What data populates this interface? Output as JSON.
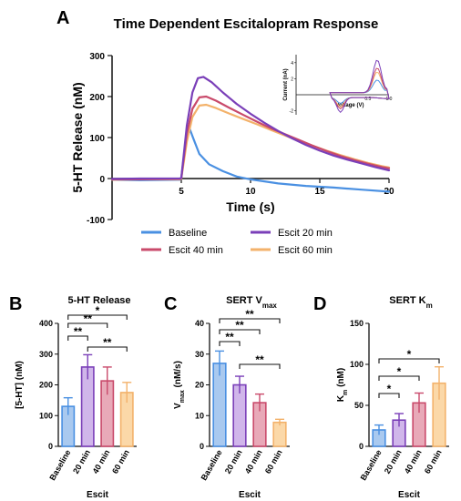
{
  "figure": {
    "panel_a": "A",
    "panel_b": "B",
    "panel_c": "C",
    "panel_d": "D"
  },
  "colors": {
    "baseline": "#4a90e2",
    "escit20": "#7a3fb8",
    "escit40": "#c94a6b",
    "escit60": "#f3b26b",
    "baseline_fill": "#a9c9ef",
    "escit20_fill": "#d0b6ea",
    "escit40_fill": "#e8a9b8",
    "escit60_fill": "#fbd8a8"
  },
  "chart_data": [
    {
      "id": "A",
      "type": "line",
      "title": "Time Dependent Escitalopram Response",
      "xlabel": "Time (s)",
      "ylabel": "5-HT Release (nM)",
      "xlim": [
        0,
        20
      ],
      "ylim": [
        -100,
        300
      ],
      "xticks": [
        "5",
        "10",
        "15",
        "20"
      ],
      "yticks": [
        "-100",
        "0",
        "100",
        "200",
        "300"
      ],
      "series": [
        {
          "name": "Baseline",
          "color": "#4a90e2",
          "points": [
            [
              0,
              -3
            ],
            [
              2,
              -4
            ],
            [
              4.9,
              -3
            ],
            [
              5.0,
              0
            ],
            [
              5.3,
              90
            ],
            [
              5.6,
              122
            ],
            [
              5.9,
              95
            ],
            [
              6.3,
              60
            ],
            [
              7,
              35
            ],
            [
              8,
              18
            ],
            [
              9,
              5
            ],
            [
              10,
              -2
            ],
            [
              12,
              -12
            ],
            [
              14,
              -18
            ],
            [
              16,
              -22
            ],
            [
              18,
              -27
            ],
            [
              20,
              -32
            ]
          ]
        },
        {
          "name": "Escit 20 min",
          "color": "#7a3fb8",
          "points": [
            [
              0,
              -1
            ],
            [
              2,
              0
            ],
            [
              4.9,
              0
            ],
            [
              5.0,
              2
            ],
            [
              5.4,
              130
            ],
            [
              5.8,
              210
            ],
            [
              6.2,
              245
            ],
            [
              6.6,
              248
            ],
            [
              7.2,
              235
            ],
            [
              8,
              210
            ],
            [
              9,
              182
            ],
            [
              10,
              158
            ],
            [
              11,
              136
            ],
            [
              12,
              116
            ],
            [
              13,
              98
            ],
            [
              14,
              82
            ],
            [
              15,
              68
            ],
            [
              16,
              56
            ],
            [
              17,
              46
            ],
            [
              18,
              37
            ],
            [
              19,
              28
            ],
            [
              20,
              20
            ]
          ]
        },
        {
          "name": "Escit 40 min",
          "color": "#c94a6b",
          "points": [
            [
              0,
              -2
            ],
            [
              2,
              -2
            ],
            [
              4.9,
              -1
            ],
            [
              5.0,
              1
            ],
            [
              5.4,
              110
            ],
            [
              5.8,
              170
            ],
            [
              6.3,
              198
            ],
            [
              6.8,
              200
            ],
            [
              7.5,
              190
            ],
            [
              8.5,
              172
            ],
            [
              9.5,
              155
            ],
            [
              10.5,
              138
            ],
            [
              11.5,
              122
            ],
            [
              12.5,
              108
            ],
            [
              13.5,
              94
            ],
            [
              14.5,
              80
            ],
            [
              15.5,
              67
            ],
            [
              16.5,
              55
            ],
            [
              17.5,
              45
            ],
            [
              18.5,
              36
            ],
            [
              19.5,
              28
            ],
            [
              20,
              25
            ]
          ]
        },
        {
          "name": "Escit 60 min",
          "color": "#f3b26b",
          "points": [
            [
              0,
              -3
            ],
            [
              2,
              -2
            ],
            [
              4.9,
              -2
            ],
            [
              5.0,
              0
            ],
            [
              5.4,
              90
            ],
            [
              5.8,
              150
            ],
            [
              6.3,
              178
            ],
            [
              6.8,
              180
            ],
            [
              7.5,
              172
            ],
            [
              8.5,
              158
            ],
            [
              9.5,
              145
            ],
            [
              10.5,
              132
            ],
            [
              11.5,
              118
            ],
            [
              12.5,
              105
            ],
            [
              13.5,
              92
            ],
            [
              14.5,
              80
            ],
            [
              15.5,
              68
            ],
            [
              16.5,
              57
            ],
            [
              17.5,
              47
            ],
            [
              18.5,
              38
            ],
            [
              19.5,
              30
            ],
            [
              20,
              27
            ]
          ]
        }
      ],
      "legend": [
        "Baseline",
        "Escit 20 min",
        "Escit 40 min",
        "Escit 60 min"
      ],
      "legend_position": "bottom"
    },
    {
      "id": "A-inset",
      "type": "line",
      "xlabel": "Voltage (V)",
      "ylabel": "Current (nA)",
      "xlim": [
        -1.2,
        1.0
      ],
      "ylim": [
        -2.5,
        5
      ],
      "xticks": [
        "0.5",
        "1.0"
      ],
      "yticks": [
        "-2",
        "2",
        "4"
      ],
      "note": "cyclic voltammograms, one per condition"
    },
    {
      "id": "B",
      "type": "bar",
      "title": "5-HT Release",
      "ylabel": "[5-HT] (nM)",
      "xlabel": "Escit",
      "categories": [
        "Baseline",
        "20 min",
        "40 min",
        "60 min"
      ],
      "values": [
        130,
        258,
        213,
        175
      ],
      "errors": [
        28,
        40,
        45,
        33
      ],
      "ylim": [
        0,
        400
      ],
      "yticks": [
        "0",
        "100",
        "200",
        "300",
        "400"
      ],
      "significance": [
        {
          "from": 0,
          "to": 1,
          "label": "**"
        },
        {
          "from": 0,
          "to": 2,
          "label": "**"
        },
        {
          "from": 0,
          "to": 3,
          "label": "*"
        },
        {
          "from": 1,
          "to": 3,
          "label": "**"
        }
      ]
    },
    {
      "id": "C",
      "type": "bar",
      "title": "SERT V",
      "title_sub": "max",
      "ylabel": "V",
      "ylabel_sub": "max",
      "ylabel_suffix": " (nM/s)",
      "xlabel": "Escit",
      "categories": [
        "Baseline",
        "20 min",
        "40 min",
        "60 min"
      ],
      "values": [
        27,
        20,
        14.2,
        7.8
      ],
      "errors": [
        4,
        2.8,
        2.8,
        1
      ],
      "ylim": [
        0,
        40
      ],
      "yticks": [
        "0",
        "10",
        "20",
        "30",
        "40"
      ],
      "significance": [
        {
          "from": 0,
          "to": 1,
          "label": "**"
        },
        {
          "from": 0,
          "to": 2,
          "label": "**"
        },
        {
          "from": 0,
          "to": 3,
          "label": "**"
        },
        {
          "from": 1,
          "to": 3,
          "label": "**"
        }
      ]
    },
    {
      "id": "D",
      "type": "bar",
      "title": "SERT K",
      "title_sub": "m",
      "ylabel": "K",
      "ylabel_sub": "m",
      "ylabel_suffix": " (nM)",
      "xlabel": "Escit",
      "categories": [
        "Baseline",
        "20 min",
        "40 min",
        "60 min"
      ],
      "values": [
        20,
        32,
        53,
        77
      ],
      "errors": [
        6,
        8,
        12,
        20
      ],
      "ylim": [
        0,
        150
      ],
      "yticks": [
        "0",
        "50",
        "100",
        "150"
      ],
      "significance": [
        {
          "from": 0,
          "to": 1,
          "label": "*"
        },
        {
          "from": 0,
          "to": 2,
          "label": "*"
        },
        {
          "from": 0,
          "to": 3,
          "label": "*"
        }
      ]
    }
  ]
}
